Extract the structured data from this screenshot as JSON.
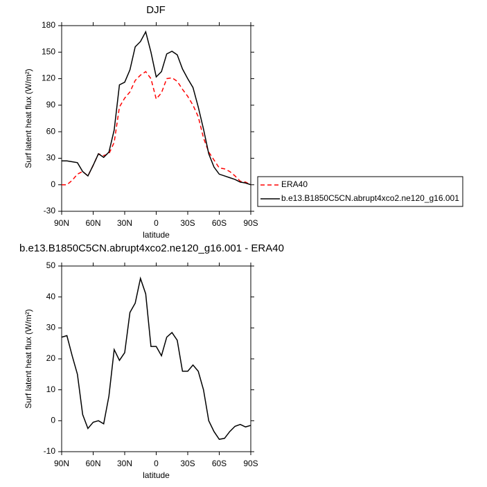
{
  "chart_data": [
    {
      "type": "line",
      "title": "DJF",
      "x_label": "latitude",
      "y_label": "Surf latent heat flux (W/m²)",
      "x": [
        90,
        85,
        80,
        75,
        70,
        65,
        60,
        55,
        50,
        45,
        40,
        35,
        30,
        25,
        20,
        15,
        10,
        5,
        0,
        -5,
        -10,
        -15,
        -20,
        -25,
        -30,
        -35,
        -40,
        -45,
        -50,
        -55,
        -60,
        -65,
        -70,
        -75,
        -80,
        -85,
        -90
      ],
      "xlim": [
        90,
        -90
      ],
      "xticks": [
        {
          "value": 90,
          "label": "90N"
        },
        {
          "value": 60,
          "label": "60N"
        },
        {
          "value": 30,
          "label": "30N"
        },
        0,
        {
          "value": -30,
          "label": "30S"
        },
        {
          "value": -60,
          "label": "60S"
        },
        {
          "value": -90,
          "label": "90S"
        }
      ],
      "ylim": [
        -30,
        180
      ],
      "yticks": [
        -30,
        0,
        30,
        60,
        90,
        120,
        150,
        180
      ],
      "series": [
        {
          "name": "ERA40",
          "color": "#ff0000",
          "style": "dashed",
          "values": [
            0,
            0,
            5,
            12,
            15,
            10,
            22,
            35,
            33,
            35,
            48,
            88,
            98,
            105,
            118,
            124,
            128,
            120,
            97,
            104,
            120,
            121,
            117,
            108,
            100,
            90,
            77,
            53,
            37,
            28,
            19,
            18,
            15,
            10,
            4,
            3,
            0
          ]
        },
        {
          "name": "b.e13.B1850C5CN.abrupt4xco2.ne120_g16.001",
          "color": "#000000",
          "style": "solid",
          "values": [
            27,
            27,
            26,
            25,
            15,
            10,
            22,
            35,
            31,
            37,
            62,
            113,
            116,
            130,
            156,
            162,
            173,
            150,
            122,
            128,
            148,
            151,
            147,
            131,
            120,
            110,
            88,
            63,
            35,
            20,
            12,
            10,
            8,
            6,
            3,
            2,
            0
          ]
        }
      ]
    },
    {
      "type": "line",
      "title": "b.e13.B1850C5CN.abrupt4xco2.ne120_g16.001 - ERA40",
      "x_label": "latitude",
      "y_label": "Surf latent heat flux (W/m²)",
      "x": [
        90,
        85,
        80,
        75,
        70,
        65,
        60,
        55,
        50,
        45,
        40,
        35,
        30,
        25,
        20,
        15,
        10,
        5,
        0,
        -5,
        -10,
        -15,
        -20,
        -25,
        -30,
        -35,
        -40,
        -45,
        -50,
        -55,
        -60,
        -65,
        -70,
        -75,
        -80,
        -85,
        -90
      ],
      "xlim": [
        90,
        -90
      ],
      "xticks": [
        {
          "value": 90,
          "label": "90N"
        },
        {
          "value": 60,
          "label": "60N"
        },
        {
          "value": 30,
          "label": "30N"
        },
        0,
        {
          "value": -30,
          "label": "30S"
        },
        {
          "value": -60,
          "label": "60S"
        },
        {
          "value": -90,
          "label": "90S"
        }
      ],
      "ylim": [
        -10,
        50
      ],
      "yticks": [
        -10,
        0,
        10,
        20,
        30,
        40,
        50
      ],
      "series": [
        {
          "color": "#000000",
          "style": "solid",
          "values": [
            27,
            27.5,
            21,
            15,
            2,
            -2.5,
            -0.5,
            0,
            -1,
            8,
            23,
            19.5,
            22,
            35,
            38,
            46,
            41,
            24,
            24,
            21,
            27,
            28.5,
            26,
            16,
            16,
            18,
            16,
            10,
            0,
            -3.5,
            -6,
            -5.7,
            -3.5,
            -1.8,
            -1.2,
            -2,
            -1.5
          ]
        }
      ]
    }
  ]
}
